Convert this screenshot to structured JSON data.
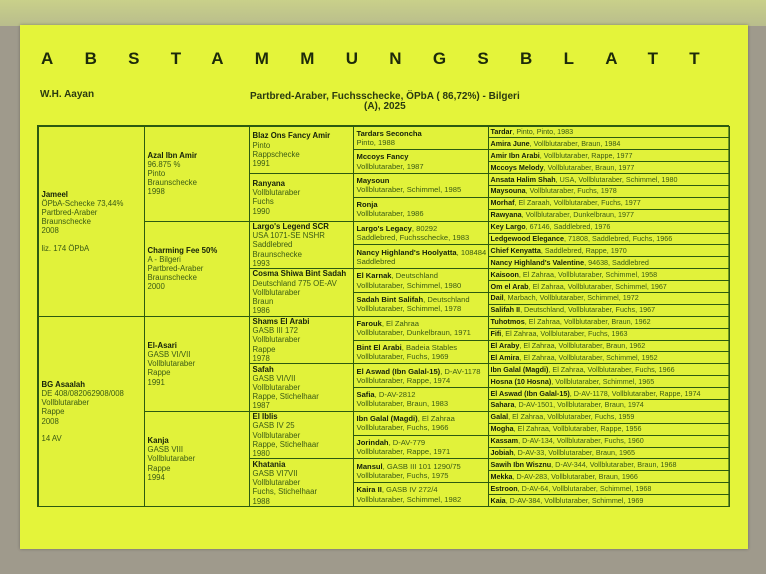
{
  "title": "ABSTAMMUNGSBLATT",
  "owner": "W.H. Aayan",
  "description_line1": "Partbred-Araber, Fuchsschecke, ÖPbA ( 86,72%) - Bilgeri",
  "description_line2": "(A), 2025",
  "colors": {
    "paper": "#e4f43a",
    "lines": "#2d5a10",
    "text": "#3a5a14"
  },
  "gen1": [
    {
      "name": "Jameel",
      "lines": [
        "ÖPbA-Schecke 73,44%",
        "Partbred-Araber",
        "Braunschecke",
        "2008"
      ],
      "note": "liz. 174 ÖPbA"
    },
    {
      "name": "BG Asaalah",
      "lines": [
        "DE 408/082062908/008",
        "Vollblutaraber",
        "Rappe",
        "2008"
      ],
      "note": "14 AV"
    }
  ],
  "gen2": [
    {
      "name": "Azal Ibn Amir",
      "lines": [
        "96.875 %",
        "Pinto",
        "Braunschecke",
        "1998"
      ]
    },
    {
      "name": "Charming Fee 50%",
      "lines": [
        "A - Bilgeri",
        "Partbred-Araber",
        "Braunschecke",
        "2000"
      ]
    },
    {
      "name": "El-Asari",
      "lines": [
        "GASB VI/VII",
        "Vollblutaraber",
        "Rappe",
        "1991"
      ]
    },
    {
      "name": "Kanja",
      "lines": [
        "GASB VIII",
        "Vollblutaraber",
        "Rappe",
        "1994"
      ]
    }
  ],
  "gen3": [
    {
      "name": "Blaz Ons Fancy Amir",
      "lines": [
        "Pinto",
        "Rappschecke",
        "1991"
      ]
    },
    {
      "name": "Ranyana",
      "lines": [
        "Vollblutaraber",
        "Fuchs",
        "1990"
      ]
    },
    {
      "name": "Largo's Legend SCR",
      "lines": [
        "USA 1071-SE NSHR",
        "Saddlebred",
        "Braunschecke",
        "1993"
      ]
    },
    {
      "name": "Cosma Shiwa Bint Sadah",
      "lines": [
        "Deutschland 775 OE-AV",
        "Vollblutaraber",
        "Braun",
        "1986"
      ]
    },
    {
      "name": "Shams El Arabi",
      "lines": [
        "GASB III 172",
        "Vollblutaraber",
        "Rappe",
        "1978"
      ]
    },
    {
      "name": "Safah",
      "lines": [
        "GASB VI/VII",
        "Vollblutaraber",
        "Rappe, Stichelhaar",
        "1987"
      ]
    },
    {
      "name": "El Iblis",
      "lines": [
        "GASB IV 25",
        "Vollblutaraber",
        "Rappe, Stichelhaar",
        "1980"
      ]
    },
    {
      "name": "Khatania",
      "lines": [
        "GASB VI7VII",
        "Vollblutaraber",
        "Fuchs, Stichelhaar",
        "1988"
      ]
    }
  ],
  "gen4": [
    {
      "name": "Tardars Seconcha",
      "extra": "",
      "line2": "Pinto, 1988"
    },
    {
      "name": "Mccoys Fancy",
      "extra": "",
      "line2": "Vollblutaraber, 1987"
    },
    {
      "name": "Maysoun",
      "extra": "",
      "line2": "Vollblutaraber, Schimmel, 1985"
    },
    {
      "name": "Ronja",
      "extra": "",
      "line2": "Vollblutaraber, 1986"
    },
    {
      "name": "Largo's Legacy",
      "extra": ", 80292",
      "line2": "Saddlebred, Fuchsschecke, 1983"
    },
    {
      "name": "Nancy Highland's Hoolyatta",
      "extra": ", 108484",
      "line2": "Saddlebred"
    },
    {
      "name": "El Karnak",
      "extra": ", Deutschland",
      "line2": "Vollblutaraber, Schimmel, 1980"
    },
    {
      "name": "Sadah Bint Salifah",
      "extra": ", Deutschland",
      "line2": "Vollblutaraber, Schimmel, 1978"
    },
    {
      "name": "Farouk",
      "extra": ", El Zahraa",
      "line2": "Vollblutaraber, Dunkelbraun, 1971"
    },
    {
      "name": "Bint El Arabi",
      "extra": ", Badeia Stables",
      "line2": "Vollblutaraber, Fuchs, 1969"
    },
    {
      "name": "El Aswad (Ibn Galal-15)",
      "extra": ", D-AV-1178",
      "line2": "Vollblutaraber, Rappe, 1974"
    },
    {
      "name": "Safia",
      "extra": ", D-AV-2812",
      "line2": "Vollblutaraber, Braun, 1983"
    },
    {
      "name": "Ibn Galal (Magdi)",
      "extra": ", El Zahraa",
      "line2": "Vollblutaraber, Fuchs, 1966"
    },
    {
      "name": "Jorindah",
      "extra": ", D-AV-779",
      "line2": "Vollblutaraber, Rappe, 1971"
    },
    {
      "name": "Mansul",
      "extra": ", GASB III 101 1290/75",
      "line2": "Vollblutaraber, Fuchs, 1975"
    },
    {
      "name": "Kaira II",
      "extra": ", GASB IV 272/4",
      "line2": "Vollblutaraber, Schimmel, 1982"
    }
  ],
  "gen5": [
    {
      "name": "Tardar",
      "rest": ", Pinto, Pinto, 1983"
    },
    {
      "name": "Amira June",
      "rest": ", Vollblutaraber, Braun, 1984"
    },
    {
      "name": "Amir Ibn Arabi",
      "rest": ", Vollblutaraber, Rappe, 1977"
    },
    {
      "name": "Mccoys Melody",
      "rest": ", Vollblutaraber, Braun, 1977"
    },
    {
      "name": "Ansata Halim Shah",
      "rest": ", USA, Vollblutaraber, Schimmel, 1980"
    },
    {
      "name": "Maysouna",
      "rest": ", Vollblutaraber, Fuchs, 1978"
    },
    {
      "name": "Morhaf",
      "rest": ", El Zaraah, Vollblutaraber, Fuchs, 1977"
    },
    {
      "name": "Rawyana",
      "rest": ", Vollblutaraber, Dunkelbraun, 1977"
    },
    {
      "name": "Key Largo",
      "rest": ", 67146, Saddlebred, 1976"
    },
    {
      "name": "Ledgewood Elegance",
      "rest": ", 71808, Saddlebred, Fuchs, 1966"
    },
    {
      "name": "Chief Kenyatta",
      "rest": ", Saddlebred, Rappe, 1970"
    },
    {
      "name": "Nancy Highland's Valentine",
      "rest": ", 94638, Saddlebred"
    },
    {
      "name": "Kaisoon",
      "rest": ", El Zahraa, Vollblutaraber, Schimmel, 1958"
    },
    {
      "name": "Om el Arab",
      "rest": ", El Zahraa, Vollblutaraber, Schimmel, 1967"
    },
    {
      "name": "Dail",
      "rest": ", Marbach, Vollblutaraber, Schimmel, 1972"
    },
    {
      "name": "Salifah II",
      "rest": ", Deutschland, Vollblutaraber, Fuchs, 1967"
    },
    {
      "name": "Tuhotmos",
      "rest": ", El Zahraa, Vollblutaraber, Braun, 1962"
    },
    {
      "name": "Fifi",
      "rest": ", El Zahraa, Vollblutaraber, Fuchs, 1963"
    },
    {
      "name": "El Araby",
      "rest": ", El Zahraa, Vollblutaraber, Braun, 1962"
    },
    {
      "name": "El Amira",
      "rest": ", El Zahraa, Vollblutaraber, Schimmel, 1952"
    },
    {
      "name": "Ibn Galal (Magdi)",
      "rest": ", El Zahraa, Vollblutaraber, Fuchs, 1966"
    },
    {
      "name": "Hosna (10 Hosna)",
      "rest": ", Vollblutaraber, Schimmel, 1965"
    },
    {
      "name": "El Aswad (Ibn Galal-15)",
      "rest": ", D-AV-1178, Vollblutaraber, Rappe, 1974"
    },
    {
      "name": "Sahara",
      "rest": ", D-AV-1501, Vollblutaraber, Braun, 1974"
    },
    {
      "name": "Galal",
      "rest": ", El Zahraa, Vollblutaraber, Fuchs, 1959"
    },
    {
      "name": "Mogha",
      "rest": ", El Zahraa, Vollblutaraber, Rappe, 1956"
    },
    {
      "name": "Kassam",
      "rest": ", D-AV-134, Vollblutaraber, Fuchs, 1960"
    },
    {
      "name": "Jobiah",
      "rest": ", D-AV-33, Vollblutaraber, Braun, 1965"
    },
    {
      "name": "Sawih Ibn Wisznu",
      "rest": ", D-AV-344, Vollblutaraber, Braun, 1968"
    },
    {
      "name": "Mekka",
      "rest": ", D-AV-283, Vollblutaraber, Braun, 1966"
    },
    {
      "name": "Estroon",
      "rest": ", D-AV-64, Vollblutaraber, Schimmel, 1968"
    },
    {
      "name": "Kaia",
      "rest": ", D-AV-384, Vollblutaraber, Schimmel, 1969"
    }
  ]
}
